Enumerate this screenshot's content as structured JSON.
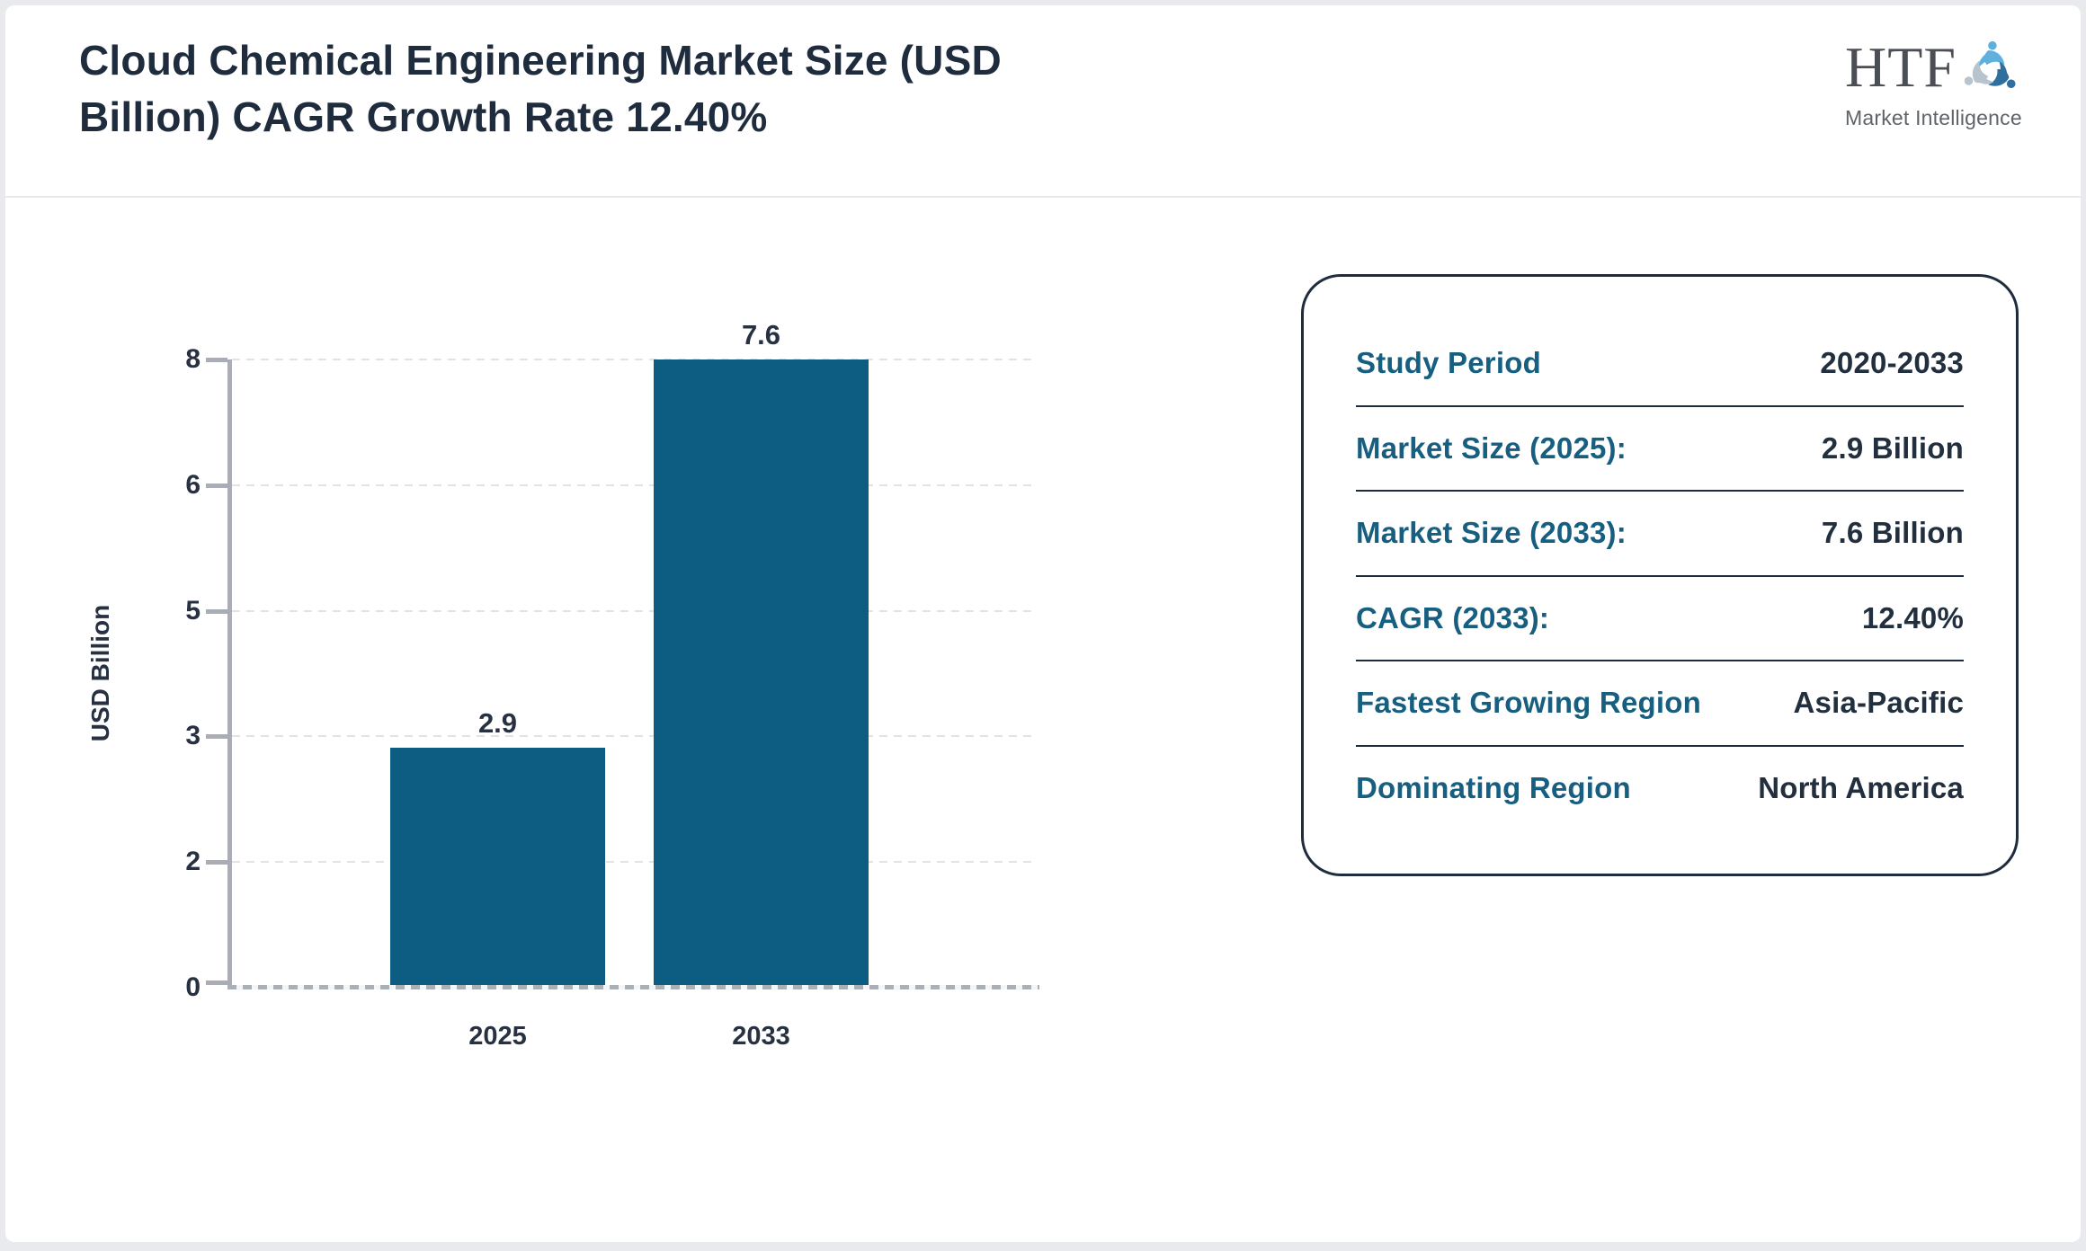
{
  "header": {
    "title_line1": "Cloud Chemical Engineering Market Size (USD",
    "title_line2": "Billion) CAGR Growth Rate 12.40%"
  },
  "logo": {
    "text": "HTF",
    "subtext": "Market Intelligence"
  },
  "chart_data": {
    "type": "bar",
    "title": "Cloud Chemical Engineering Market Size (USD Billion) CAGR Growth Rate 12.40%",
    "categories": [
      "2025",
      "2033"
    ],
    "values": [
      2.9,
      7.6
    ],
    "bar_labels": [
      "2.9",
      "7.6"
    ],
    "xlabel": "",
    "ylabel": "USD Billion",
    "ylim": [
      0,
      7.6
    ],
    "ytick_labels_top_to_bottom": [
      "8",
      "6",
      "5",
      "3",
      "2",
      "0"
    ],
    "grid": "horizontal dashed",
    "legend": "none",
    "bar_color": "#0d5c81"
  },
  "info_panel": {
    "rows": [
      {
        "label": "Study Period",
        "value": "2020-2033"
      },
      {
        "label": "Market Size (2025):",
        "value": "2.9 Billion"
      },
      {
        "label": "Market Size (2033):",
        "value": "7.6 Billion"
      },
      {
        "label": "CAGR (2033):",
        "value": "12.40%"
      },
      {
        "label": "Fastest Growing Region",
        "value": "Asia-Pacific"
      },
      {
        "label": "Dominating Region",
        "value": "North America"
      }
    ]
  },
  "colors": {
    "bar": "#0d5c81",
    "label_teal": "#175f80",
    "value_navy": "#222f3f",
    "title_navy": "#1e2c3d",
    "axis_gray": "#a9aeb6",
    "grid_gray": "#e2e3e5",
    "page_background": "#e9eaee",
    "card_background": "#ffffff",
    "logo_blue_light": "#5fb0dc",
    "logo_blue_dark": "#2e6f9e",
    "logo_gray": "#b7c3cd"
  }
}
